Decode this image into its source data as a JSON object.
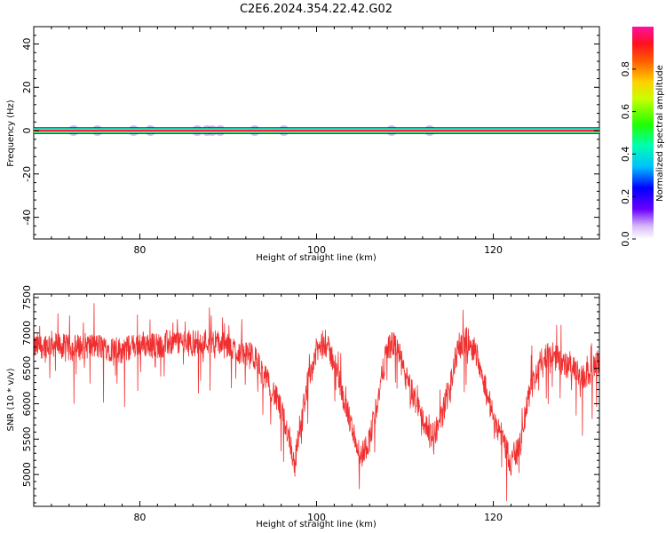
{
  "title": "C2E6.2024.354.22.42.G02",
  "chart_data": [
    {
      "type": "heatmap",
      "xlabel": "Height of straight line (km)",
      "ylabel": "Frequency (Hz)",
      "xlim": [
        68,
        132
      ],
      "ylim": [
        -50,
        48
      ],
      "x_ticks": [
        80,
        100,
        120
      ],
      "y_ticks": [
        40,
        20,
        0,
        -20,
        -40
      ],
      "colorbar": {
        "label": "Normalized spectral amplitude",
        "range": [
          0,
          1
        ],
        "ticks": [
          "0.0",
          "0.2",
          "0.4",
          "0.6",
          "0.8"
        ]
      },
      "band": {
        "frequency": 0,
        "half_width_hz": 1.5
      },
      "blobs_km": [
        72.5,
        75.2,
        79.3,
        81.2,
        86.5,
        87.6,
        88.2,
        89.1,
        93.0,
        96.3,
        108.5,
        112.8
      ]
    },
    {
      "type": "line",
      "xlabel": "Height of straight line (km)",
      "ylabel": "SNR (10 * v/v)",
      "xlim": [
        68,
        132
      ],
      "ylim": [
        4550,
        7550
      ],
      "x_ticks": [
        80,
        100,
        120
      ],
      "y_ticks": [
        5000,
        5500,
        6000,
        6500,
        7000,
        7500
      ],
      "color": "#f03030",
      "series": [
        {
          "x": [
            68,
            70,
            72,
            74,
            76,
            78,
            80,
            82,
            84,
            86,
            88,
            90,
            92,
            93,
            94,
            95,
            96,
            97,
            97.5,
            98,
            99,
            100,
            101,
            102,
            103,
            104,
            105,
            106,
            107,
            108,
            109,
            110,
            111,
            112,
            113,
            114,
            115,
            116,
            117,
            118,
            119,
            120,
            121,
            122,
            123,
            124,
            125,
            126,
            127,
            128,
            129,
            130,
            131,
            132
          ],
          "y": [
            6800,
            6850,
            6780,
            6820,
            6800,
            6750,
            6850,
            6820,
            6880,
            6850,
            6900,
            6800,
            6700,
            6650,
            6400,
            6200,
            5900,
            5500,
            5100,
            5600,
            6300,
            6750,
            6850,
            6600,
            6100,
            5650,
            5250,
            5500,
            6100,
            6800,
            6850,
            6400,
            6100,
            5800,
            5500,
            5750,
            6200,
            6800,
            6900,
            6750,
            6300,
            5800,
            5550,
            5150,
            5400,
            6100,
            6500,
            6700,
            6650,
            6550,
            6500,
            6350,
            6450,
            6600
          ]
        }
      ]
    }
  ]
}
